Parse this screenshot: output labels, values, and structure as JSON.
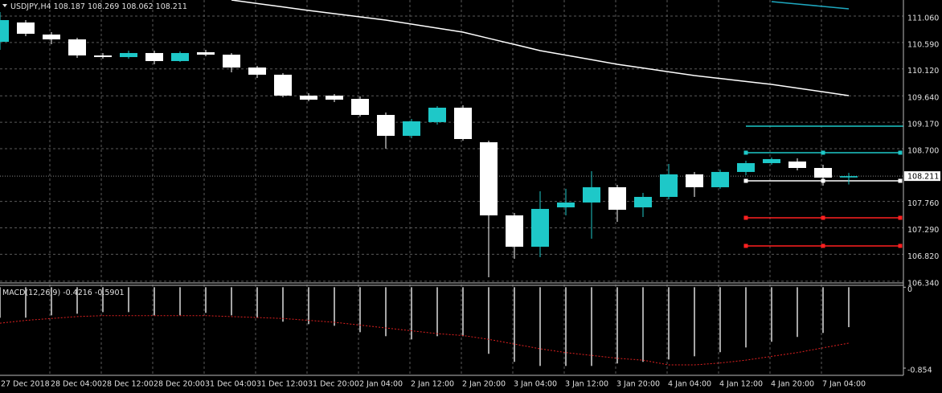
{
  "chart_data": [
    {
      "type": "candlestick",
      "title": "USDJPY,H4",
      "categories": [
        "27 Dec 2018",
        null,
        "28 Dec 04:00",
        null,
        "28 Dec 12:00",
        null,
        "28 Dec 20:00",
        null,
        "31 Dec 04:00",
        null,
        "31 Dec 12:00",
        null,
        "31 Dec 20:00",
        null,
        "2 Jan 04:00",
        null,
        "2 Jan 12:00",
        null,
        "2 Jan 20:00",
        null,
        "3 Jan 04:00",
        null,
        "3 Jan 12:00",
        null,
        "3 Jan 20:00",
        null,
        "4 Jan 04:00",
        null,
        "4 Jan 12:00",
        null,
        "4 Jan 20:00",
        null,
        "7 Jan 04:00",
        null
      ],
      "open": [
        110.602,
        110.946,
        110.731,
        110.645,
        110.359,
        110.33,
        110.402,
        110.259,
        110.416,
        110.373,
        110.144,
        110.016,
        109.644,
        109.644,
        109.586,
        109.3,
        108.928,
        109.172,
        109.429,
        108.814,
        107.512,
        106.954,
        107.655,
        107.741,
        108.013,
        107.655,
        107.841,
        108.242,
        108.013,
        108.285,
        108.442,
        108.471,
        108.356,
        108.187
      ],
      "high": [
        111.132,
        110.988,
        110.774,
        110.674,
        110.402,
        110.445,
        110.445,
        110.431,
        110.459,
        110.402,
        110.173,
        110.044,
        109.687,
        109.672,
        109.629,
        109.343,
        109.229,
        109.458,
        109.472,
        108.843,
        107.555,
        107.941,
        107.985,
        108.299,
        108.056,
        107.913,
        108.428,
        108.285,
        108.328,
        108.485,
        108.542,
        108.528,
        108.413,
        108.269
      ],
      "low": [
        110.459,
        110.702,
        110.559,
        110.316,
        110.302,
        110.302,
        110.202,
        110.245,
        110.345,
        110.059,
        109.958,
        109.615,
        109.544,
        109.529,
        109.272,
        108.7,
        108.885,
        109.129,
        108.843,
        106.41,
        106.74,
        106.768,
        107.512,
        107.097,
        107.398,
        107.483,
        107.798,
        107.841,
        107.985,
        108.227,
        108.413,
        108.313,
        108.041,
        108.062
      ],
      "close": [
        110.988,
        110.745,
        110.645,
        110.359,
        110.33,
        110.402,
        110.259,
        110.402,
        110.373,
        110.144,
        110.016,
        109.644,
        109.572,
        109.572,
        109.3,
        108.928,
        109.186,
        109.429,
        108.871,
        107.512,
        106.954,
        107.627,
        107.741,
        108.013,
        107.612,
        107.841,
        108.242,
        108.013,
        108.285,
        108.442,
        108.514,
        108.356,
        108.184,
        108.211
      ],
      "up_color": "#1ec8c8",
      "down_color": "#ffffff",
      "lines": [
        {
          "color": "#ffffff",
          "values": [
            null,
            null,
            null,
            null,
            null,
            null,
            null,
            null,
            null,
            111.346,
            111.284,
            111.222,
            111.16,
            111.103,
            111.045,
            110.988,
            110.917,
            110.845,
            110.774,
            110.664,
            110.555,
            110.445,
            110.364,
            110.283,
            110.202,
            110.135,
            110.068,
            110.001,
            109.949,
            109.896,
            109.844,
            109.777,
            109.711,
            109.644
          ]
        },
        {
          "color": "#1ea8c0",
          "values": [
            null,
            null,
            null,
            null,
            null,
            null,
            null,
            null,
            null,
            null,
            null,
            null,
            null,
            null,
            null,
            null,
            null,
            null,
            null,
            null,
            null,
            null,
            null,
            null,
            null,
            null,
            null,
            null,
            null,
            null,
            111.318,
            111.275,
            111.232,
            111.189
          ]
        }
      ],
      "levels": [
        {
          "value": 109.1,
          "color": "#1ec8c8",
          "markers": false
        },
        {
          "value": 108.628,
          "color": "#1ec8c8",
          "markers": true
        },
        {
          "value": 108.127,
          "color": "#ffffff",
          "markers": true
        },
        {
          "value": 107.469,
          "color": "#ff2020",
          "markers": true
        },
        {
          "value": 106.969,
          "color": "#ff2020",
          "markers": true
        }
      ],
      "last_price": 108.211,
      "ylim": [
        106.31,
        111.346
      ],
      "yticks": [
        {
          "value": 106.34,
          "label": "106.340"
        },
        {
          "value": 106.82,
          "label": "106.820"
        },
        {
          "value": 107.29,
          "label": "107.290"
        },
        {
          "value": 107.76,
          "label": "107.760"
        },
        {
          "value": 108.7,
          "label": "108.700"
        },
        {
          "value": 109.17,
          "label": "109.170"
        },
        {
          "value": 109.64,
          "label": "109.640"
        },
        {
          "value": 110.12,
          "label": "110.120"
        },
        {
          "value": 110.59,
          "label": "110.590"
        },
        {
          "value": 111.06,
          "label": "111.060"
        }
      ],
      "grid": true
    },
    {
      "type": "macd",
      "title": "MACD(12,26,9)",
      "values": [
        -0.322,
        -0.322,
        -0.297,
        -0.28,
        -0.263,
        -0.263,
        -0.297,
        -0.297,
        -0.271,
        -0.297,
        -0.322,
        -0.364,
        -0.39,
        -0.407,
        -0.475,
        -0.517,
        -0.551,
        -0.517,
        -0.517,
        -0.703,
        -0.788,
        -0.831,
        -0.831,
        -0.831,
        -0.805,
        -0.788,
        -0.763,
        -0.729,
        -0.686,
        -0.636,
        -0.576,
        -0.525,
        -0.483,
        -0.4216
      ],
      "signal": [
        -0.38,
        -0.35,
        -0.33,
        -0.31,
        -0.3,
        -0.3,
        -0.3,
        -0.3,
        -0.3,
        -0.31,
        -0.32,
        -0.33,
        -0.35,
        -0.37,
        -0.4,
        -0.43,
        -0.46,
        -0.49,
        -0.51,
        -0.55,
        -0.6,
        -0.65,
        -0.69,
        -0.72,
        -0.75,
        -0.77,
        -0.82,
        -0.82,
        -0.8,
        -0.77,
        -0.73,
        -0.69,
        -0.64,
        -0.5901
      ],
      "color": "#dcdcdc",
      "signal_color": "#e02020",
      "ylim": [
        -0.93,
        0.02
      ],
      "yticks": [
        -0.854,
        0
      ]
    }
  ]
}
